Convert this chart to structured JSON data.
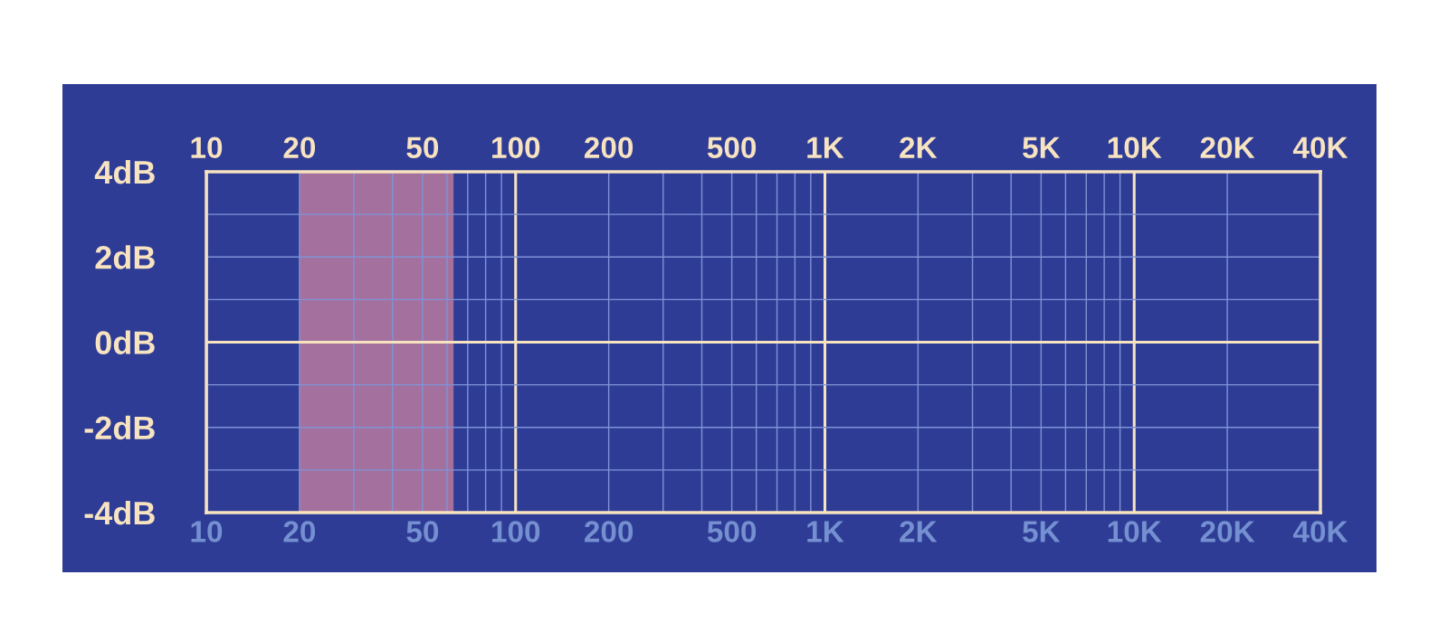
{
  "chart_data": {
    "type": "line",
    "log": "x",
    "xlim": [
      10,
      40000
    ],
    "ylim": [
      -4,
      4
    ],
    "xticks": [
      {
        "value": 10,
        "label": "10"
      },
      {
        "value": 20,
        "label": "20"
      },
      {
        "value": 30,
        "label": null
      },
      {
        "value": 40,
        "label": null
      },
      {
        "value": 50,
        "label": "50"
      },
      {
        "value": 60,
        "label": null
      },
      {
        "value": 70,
        "label": null
      },
      {
        "value": 80,
        "label": null
      },
      {
        "value": 90,
        "label": null
      },
      {
        "value": 100,
        "label": "100"
      },
      {
        "value": 200,
        "label": "200"
      },
      {
        "value": 300,
        "label": null
      },
      {
        "value": 400,
        "label": null
      },
      {
        "value": 500,
        "label": "500"
      },
      {
        "value": 600,
        "label": null
      },
      {
        "value": 700,
        "label": null
      },
      {
        "value": 800,
        "label": null
      },
      {
        "value": 900,
        "label": null
      },
      {
        "value": 1000,
        "label": "1K"
      },
      {
        "value": 2000,
        "label": "2K"
      },
      {
        "value": 3000,
        "label": null
      },
      {
        "value": 4000,
        "label": null
      },
      {
        "value": 5000,
        "label": "5K"
      },
      {
        "value": 6000,
        "label": null
      },
      {
        "value": 7000,
        "label": null
      },
      {
        "value": 8000,
        "label": null
      },
      {
        "value": 9000,
        "label": null
      },
      {
        "value": 10000,
        "label": "10K"
      },
      {
        "value": 20000,
        "label": "20K"
      },
      {
        "value": 40000,
        "label": "40K"
      }
    ],
    "yticks": [
      {
        "value": -4,
        "label": "-4dB"
      },
      {
        "value": -3,
        "label": null
      },
      {
        "value": -2,
        "label": "-2dB"
      },
      {
        "value": -1,
        "label": null
      },
      {
        "value": 0,
        "label": "0dB"
      },
      {
        "value": 1,
        "label": null
      },
      {
        "value": 2,
        "label": "2dB"
      },
      {
        "value": 3,
        "label": null
      },
      {
        "value": 4,
        "label": "4dB"
      }
    ],
    "grid": true,
    "bands": [
      {
        "axis": "x",
        "from": 20,
        "to": 63,
        "color": "#c27da0"
      }
    ]
  }
}
